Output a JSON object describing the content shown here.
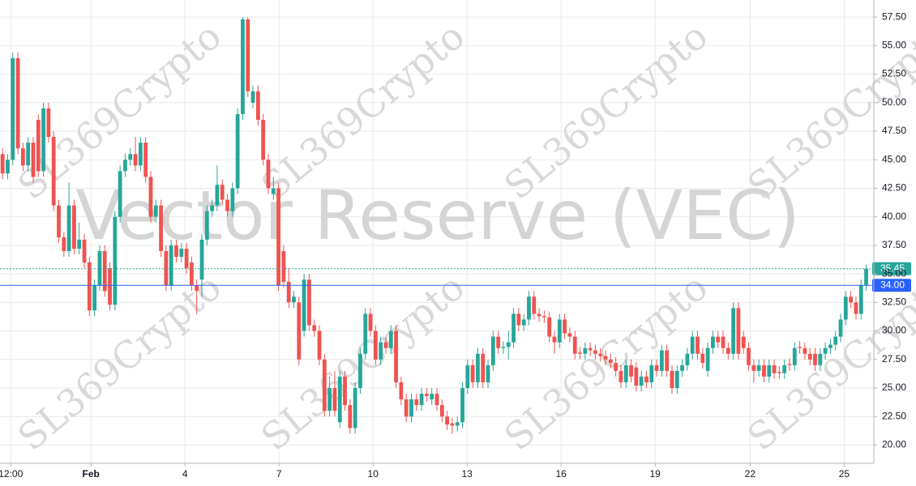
{
  "chart_data": {
    "type": "candlestick",
    "watermark": "Vector Reserve (VEC)",
    "brand": "SL369Crypto",
    "up_color": "#26a69a",
    "down_color": "#ef5350",
    "grid": true,
    "xlim": [
      -0.5,
      170.5
    ],
    "xticks": [
      {
        "value": 1.6,
        "label": "12:00"
      },
      {
        "value": 17.3,
        "label": "Feb"
      },
      {
        "value": 35.7,
        "label": "4"
      },
      {
        "value": 54.1,
        "label": "7"
      },
      {
        "value": 72.5,
        "label": "10"
      },
      {
        "value": 90.9,
        "label": "13"
      },
      {
        "value": 109.3,
        "label": "16"
      },
      {
        "value": 127.7,
        "label": "19"
      },
      {
        "value": 146.3,
        "label": "22"
      },
      {
        "value": 164.7,
        "label": "25"
      }
    ],
    "ylim": [
      18.4,
      59.0
    ],
    "yticks": [
      {
        "value": 20,
        "label": "20.00"
      },
      {
        "value": 22.5,
        "label": "22.50"
      },
      {
        "value": 25,
        "label": "25.00"
      },
      {
        "value": 27.5,
        "label": "27.50"
      },
      {
        "value": 30,
        "label": "30.00"
      },
      {
        "value": 32.5,
        "label": "32.50"
      },
      {
        "value": 35,
        "label": "35.00"
      },
      {
        "value": 37.5,
        "label": "37.50"
      },
      {
        "value": 40,
        "label": "40.00"
      },
      {
        "value": 42.5,
        "label": "42.50"
      },
      {
        "value": 45,
        "label": "45.00"
      },
      {
        "value": 47.5,
        "label": "47.50"
      },
      {
        "value": 50,
        "label": "50.00"
      },
      {
        "value": 52.5,
        "label": "52.50"
      },
      {
        "value": 55,
        "label": "55.00"
      },
      {
        "value": 57.5,
        "label": "57.50"
      }
    ],
    "price_lines": [
      {
        "value": 35.45,
        "label": "35.45",
        "color": "#26a69a",
        "style": "dotted"
      },
      {
        "value": 34,
        "label": "34.00",
        "color": "#2962ff",
        "style": "solid"
      }
    ],
    "open": [
      45.5,
      43.8,
      45.0,
      53.9,
      46.0,
      44.5,
      46.5,
      48.5,
      44.0,
      49.5,
      47.0,
      41.0,
      38.2,
      37.0,
      41.0,
      37.2,
      38.0,
      36.0,
      31.8,
      34.0,
      37.0,
      35.5,
      32.3,
      40.0,
      44.0,
      45.0,
      45.5,
      44.5,
      46.5,
      43.5,
      40.0,
      41.0,
      37.0,
      34.0,
      37.5,
      36.5,
      37.2,
      36.0,
      34.0,
      34.5,
      38.0,
      40.5,
      41.0,
      42.8,
      41.5,
      40.5,
      42.5,
      49.0,
      57.3,
      50.0,
      51.0,
      48.5,
      45.0,
      42.0,
      42.5,
      37.0,
      34.3,
      32.5,
      32.5,
      30.0,
      34.5,
      30.5,
      30.0,
      27.5,
      23.0,
      25.0,
      22.0,
      26.0,
      23.5,
      21.5,
      25.0,
      28.0,
      31.5,
      30.0,
      27.5,
      29.0,
      28.5,
      30.0,
      25.5,
      24.0,
      22.5,
      24.0,
      23.5,
      24.5,
      24.0,
      24.5,
      23.5,
      22.5,
      21.9,
      21.7,
      22.0,
      25.0,
      27.0,
      25.5,
      28.0,
      25.5,
      27.0,
      29.5,
      28.5,
      28.6,
      29.0,
      31.5,
      30.5,
      31.0,
      33.0,
      31.5,
      31.3,
      31.2,
      29.5,
      29.0,
      31.0,
      29.8,
      29.5,
      28.1,
      28.0,
      28.5,
      28.3,
      28.0,
      27.8,
      27.5,
      27.2,
      26.5,
      25.5,
      27.0,
      26.8,
      25.2,
      26.0,
      25.5,
      27.0,
      26.5,
      28.3,
      26.5,
      25.0,
      26.5,
      27.0,
      28.0,
      29.5,
      28.0,
      26.5,
      28.5,
      29.5,
      29.5,
      28.5,
      28.0,
      32.0,
      29.5,
      28.5,
      27.0,
      26.5,
      27.0,
      26.0,
      27.0,
      26.4,
      26.3,
      27.1,
      27.0,
      28.6,
      28.5,
      28.0,
      28.0,
      27.0,
      28.0,
      28.5,
      28.8,
      29.5,
      31.0,
      33.0,
      32.5,
      31.5,
      34.0
    ],
    "high": [
      46.0,
      45.5,
      54.4,
      54.4,
      46.5,
      47.0,
      47.0,
      49.0,
      50.0,
      50.0,
      47.5,
      41.5,
      38.7,
      43.0,
      41.5,
      39.5,
      38.5,
      36.5,
      34.5,
      37.5,
      37.5,
      36.0,
      40.5,
      44.5,
      45.5,
      46.0,
      47.0,
      47.0,
      47.0,
      44.0,
      41.5,
      41.5,
      37.5,
      38.0,
      38.0,
      37.7,
      37.7,
      36.5,
      34.5,
      38.5,
      41.0,
      41.5,
      44.5,
      43.3,
      42.0,
      43.0,
      49.5,
      57.5,
      57.5,
      51.5,
      51.5,
      49.0,
      45.5,
      43.5,
      43.0,
      37.5,
      35.5,
      33.5,
      33.0,
      35.0,
      35.0,
      31.0,
      30.5,
      28.0,
      26.0,
      26.5,
      26.5,
      26.5,
      24.0,
      25.5,
      28.5,
      32.0,
      32.0,
      30.5,
      29.5,
      29.5,
      30.5,
      30.5,
      26.0,
      24.5,
      24.5,
      24.5,
      25.0,
      25.0,
      25.0,
      25.0,
      24.0,
      23.0,
      22.4,
      22.5,
      25.5,
      27.5,
      27.5,
      28.5,
      28.5,
      27.5,
      30.0,
      30.0,
      29.1,
      30.0,
      32.0,
      32.0,
      31.5,
      33.5,
      33.5,
      32.0,
      31.8,
      31.7,
      30.0,
      31.5,
      31.5,
      30.3,
      30.0,
      28.6,
      29.0,
      29.0,
      28.8,
      28.5,
      28.3,
      28.0,
      27.7,
      27.0,
      27.5,
      27.5,
      27.3,
      26.5,
      26.5,
      27.5,
      27.5,
      28.8,
      28.8,
      27.0,
      27.0,
      27.5,
      28.5,
      30.0,
      30.0,
      28.5,
      29.0,
      30.0,
      30.0,
      30.0,
      29.0,
      32.5,
      32.5,
      30.0,
      29.0,
      27.5,
      27.5,
      27.5,
      27.5,
      27.5,
      26.9,
      27.5,
      27.6,
      29.0,
      29.1,
      29.0,
      28.5,
      28.5,
      28.5,
      29.0,
      29.3,
      30.0,
      31.5,
      33.5,
      33.5,
      33.0,
      34.5,
      35.8
    ],
    "low": [
      43.3,
      43.3,
      44.5,
      45.5,
      44.0,
      44.0,
      43.0,
      43.5,
      43.5,
      46.5,
      40.5,
      37.7,
      36.5,
      36.5,
      36.7,
      36.7,
      35.5,
      31.3,
      31.3,
      33.5,
      33.0,
      31.8,
      31.8,
      39.5,
      43.5,
      44.5,
      44.0,
      44.0,
      43.0,
      39.5,
      39.5,
      36.5,
      33.5,
      33.5,
      36.0,
      36.0,
      35.0,
      33.5,
      31.5,
      33.0,
      37.5,
      40.0,
      40.5,
      41.0,
      40.0,
      40.0,
      42.0,
      48.5,
      50.5,
      49.5,
      48.0,
      44.5,
      42.0,
      41.5,
      33.5,
      33.8,
      32.0,
      32.0,
      27.0,
      29.5,
      30.0,
      29.5,
      27.0,
      22.5,
      22.5,
      22.5,
      21.5,
      23.0,
      21.0,
      21.0,
      24.5,
      27.5,
      29.5,
      27.0,
      27.0,
      28.0,
      28.0,
      25.0,
      23.5,
      22.0,
      22.0,
      23.0,
      23.0,
      23.8,
      23.5,
      23.0,
      22.0,
      21.3,
      21.0,
      21.2,
      21.5,
      24.5,
      25.0,
      25.0,
      25.0,
      25.0,
      26.5,
      28.0,
      28.0,
      27.5,
      28.5,
      30.0,
      30.0,
      30.5,
      31.0,
      30.8,
      30.7,
      29.0,
      28.0,
      28.5,
      29.3,
      29.0,
      27.5,
      27.5,
      27.5,
      27.8,
      27.5,
      27.3,
      27.0,
      26.7,
      26.0,
      25.0,
      25.0,
      25.5,
      24.7,
      24.7,
      25.0,
      25.0,
      26.0,
      26.0,
      26.0,
      24.5,
      24.5,
      26.0,
      26.5,
      27.5,
      27.5,
      26.7,
      26.0,
      28.0,
      28.5,
      28.0,
      27.5,
      27.5,
      27.5,
      28.0,
      26.5,
      25.5,
      26.0,
      25.5,
      25.5,
      25.8,
      25.8,
      25.8,
      26.5,
      26.5,
      28.0,
      27.5,
      27.0,
      26.5,
      26.5,
      27.5,
      28.0,
      28.3,
      29.0,
      30.5,
      32.0,
      31.0,
      31.0,
      33.5
    ],
    "close": [
      43.8,
      45.0,
      53.9,
      46.0,
      44.5,
      46.5,
      43.5,
      44.0,
      49.5,
      47.0,
      41.0,
      38.2,
      37.0,
      41.0,
      37.2,
      38.0,
      36.0,
      31.8,
      34.0,
      37.0,
      33.5,
      32.3,
      40.0,
      44.0,
      45.0,
      45.5,
      44.5,
      46.5,
      43.5,
      40.0,
      41.0,
      37.0,
      34.0,
      37.5,
      36.5,
      37.2,
      35.5,
      34.0,
      33.5,
      38.0,
      40.5,
      41.0,
      42.8,
      41.5,
      40.5,
      42.5,
      49.0,
      57.3,
      51.0,
      51.0,
      48.5,
      45.0,
      42.5,
      42.5,
      34.0,
      34.3,
      32.5,
      33.0,
      27.5,
      34.5,
      30.5,
      30.0,
      27.5,
      23.0,
      25.0,
      23.0,
      26.0,
      23.5,
      21.5,
      25.0,
      28.0,
      31.5,
      30.0,
      27.5,
      29.0,
      28.5,
      30.0,
      25.5,
      24.0,
      22.5,
      24.0,
      23.5,
      24.5,
      24.3,
      24.5,
      23.5,
      22.5,
      21.8,
      21.7,
      22.0,
      25.0,
      27.0,
      25.5,
      28.0,
      25.5,
      27.0,
      29.5,
      28.5,
      28.6,
      29.0,
      31.5,
      30.5,
      31.0,
      33.0,
      31.5,
      31.3,
      31.2,
      29.5,
      29.0,
      31.0,
      29.8,
      29.5,
      28.0,
      28.0,
      28.5,
      28.3,
      28.0,
      27.8,
      27.5,
      27.2,
      26.5,
      25.5,
      27.0,
      26.0,
      25.2,
      26.0,
      25.5,
      27.0,
      26.5,
      28.3,
      26.5,
      25.0,
      26.5,
      27.0,
      28.0,
      29.5,
      28.0,
      27.2,
      28.5,
      29.5,
      29.0,
      28.5,
      28.0,
      32.0,
      28.0,
      28.5,
      27.0,
      26.5,
      27.0,
      26.0,
      27.0,
      26.3,
      26.3,
      27.0,
      27.0,
      28.5,
      28.5,
      28.0,
      27.5,
      27.0,
      28.0,
      28.5,
      28.8,
      29.5,
      31.0,
      33.0,
      32.5,
      31.5,
      34.0,
      35.45
    ]
  }
}
